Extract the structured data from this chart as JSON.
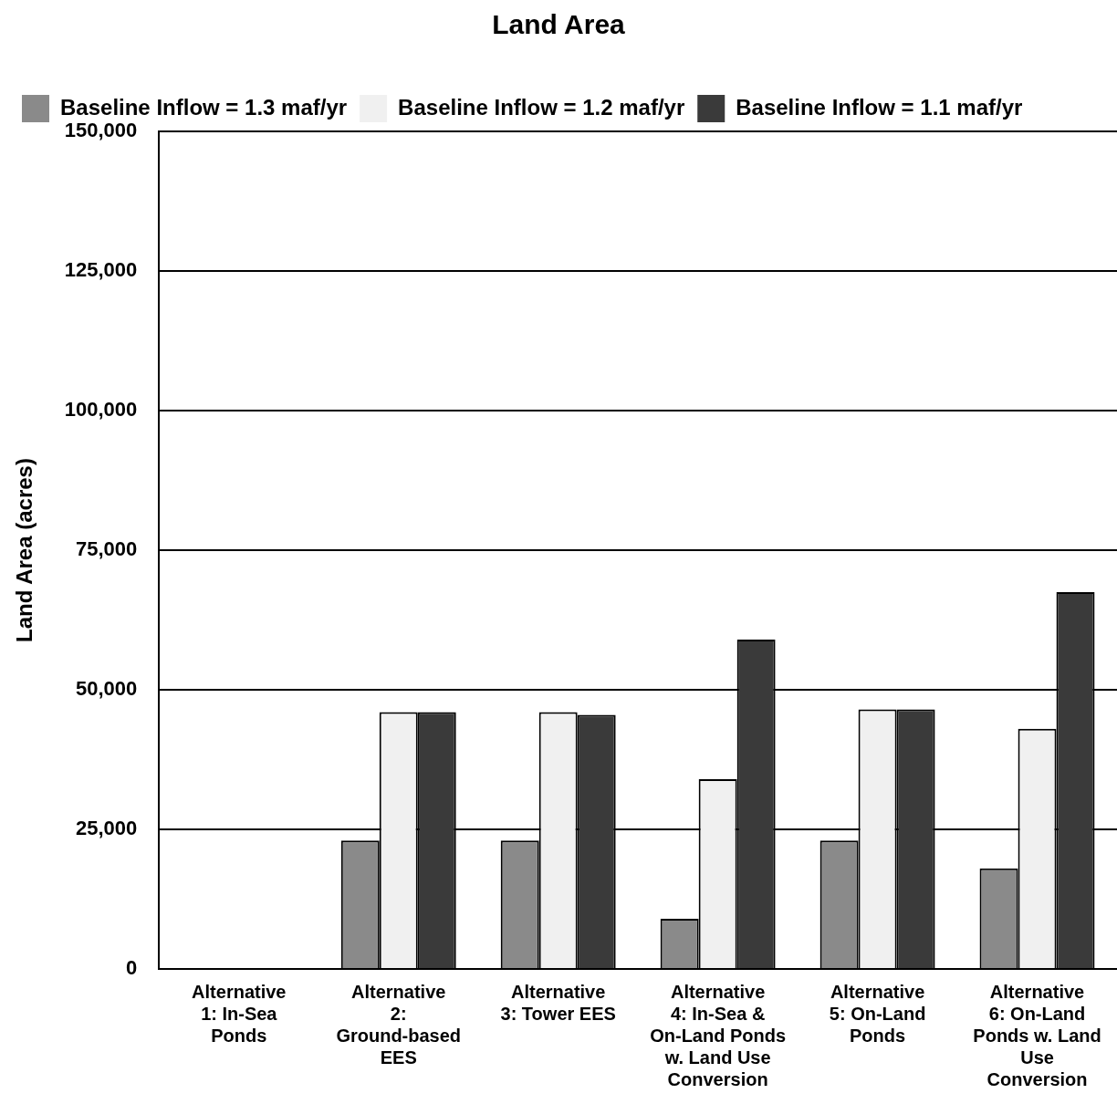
{
  "chart_data": {
    "type": "bar",
    "title": "Land Area",
    "ylabel": "Land Area (acres)",
    "categories": [
      "Alternative 1: In-Sea Ponds",
      "Alternative 2: Ground-based EES",
      "Alternative 3: Tower EES",
      "Alternative 4: In-Sea & On-Land Ponds w. Land Use Conversion",
      "Alternative 5: On-Land Ponds",
      "Alternative 6: On-Land Ponds w. Land Use Conversion"
    ],
    "series": [
      {
        "name": "Baseline Inflow = 1.3 maf/yr",
        "color": "#8a8a8a",
        "values": [
          null,
          23000,
          23000,
          9000,
          23000,
          18000
        ]
      },
      {
        "name": "Baseline Inflow = 1.2 maf/yr",
        "color": "#f0f0f0",
        "values": [
          null,
          46000,
          46000,
          34000,
          46500,
          43000
        ]
      },
      {
        "name": "Baseline Inflow = 1.1 maf/yr",
        "color": "#3a3a3a",
        "values": [
          null,
          46000,
          45500,
          59000,
          46500,
          67500
        ]
      }
    ],
    "ylim": [
      0,
      150000
    ],
    "yticks": [
      {
        "value": 0,
        "label": "0"
      },
      {
        "value": 25000,
        "label": "25,000"
      },
      {
        "value": 50000,
        "label": "50,000"
      },
      {
        "value": 75000,
        "label": "75,000"
      },
      {
        "value": 100000,
        "label": "100,000"
      },
      {
        "value": 125000,
        "label": "125,000"
      },
      {
        "value": 150000,
        "label": "150,000"
      }
    ],
    "grid": "y",
    "legend": "top left"
  }
}
